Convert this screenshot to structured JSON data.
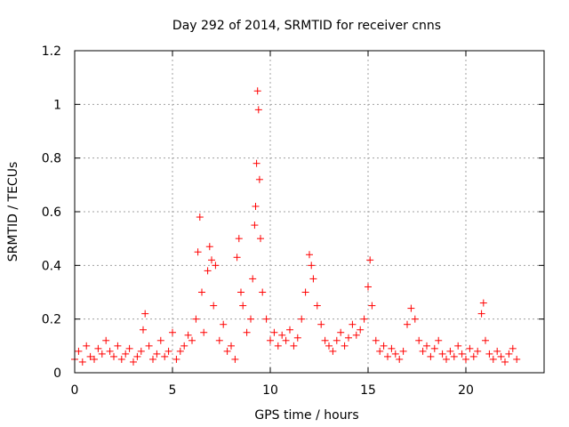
{
  "chart_data": {
    "type": "scatter",
    "title": "Day 292 of 2014, SRMTID for receiver cnns",
    "xlabel": "GPS time / hours",
    "ylabel": "SRMTID / TECUs",
    "xlim": [
      0,
      24
    ],
    "ylim": [
      0,
      1.2
    ],
    "xticks": [
      0,
      5,
      10,
      15,
      20
    ],
    "xtick_labels": [
      "0",
      "5",
      "10",
      "15",
      "20"
    ],
    "yticks": [
      0,
      0.2,
      0.4,
      0.6,
      0.8,
      1.0,
      1.2
    ],
    "ytick_labels": [
      "0",
      "0.2",
      "0.4",
      "0.6",
      "0.8",
      "1",
      "1.2"
    ],
    "grid": true,
    "marker": "+",
    "color": "#ff0000",
    "series": [
      {
        "name": "SRMTID",
        "x": [
          0.0,
          0.2,
          0.4,
          0.6,
          0.8,
          1.0,
          1.2,
          1.4,
          1.6,
          1.8,
          2.0,
          2.2,
          2.4,
          2.6,
          2.8,
          3.0,
          3.2,
          3.4,
          3.5,
          3.6,
          3.8,
          4.0,
          4.2,
          4.4,
          4.6,
          4.8,
          5.0,
          5.2,
          5.4,
          5.6,
          5.8,
          6.0,
          6.2,
          6.3,
          6.4,
          6.5,
          6.6,
          6.8,
          6.9,
          7.0,
          7.1,
          7.2,
          7.4,
          7.6,
          7.8,
          8.0,
          8.2,
          8.3,
          8.4,
          8.5,
          8.6,
          8.8,
          9.0,
          9.1,
          9.2,
          9.25,
          9.3,
          9.35,
          9.4,
          9.45,
          9.5,
          9.6,
          9.8,
          10.0,
          10.2,
          10.4,
          10.6,
          10.8,
          11.0,
          11.2,
          11.4,
          11.6,
          11.8,
          12.0,
          12.1,
          12.2,
          12.4,
          12.6,
          12.8,
          13.0,
          13.2,
          13.4,
          13.6,
          13.8,
          14.0,
          14.2,
          14.4,
          14.6,
          14.8,
          15.0,
          15.1,
          15.2,
          15.4,
          15.6,
          15.8,
          16.0,
          16.2,
          16.4,
          16.6,
          16.8,
          17.0,
          17.2,
          17.4,
          17.6,
          17.8,
          18.0,
          18.2,
          18.4,
          18.6,
          18.8,
          19.0,
          19.2,
          19.4,
          19.6,
          19.8,
          20.0,
          20.2,
          20.4,
          20.6,
          20.8,
          20.9,
          21.0,
          21.2,
          21.4,
          21.6,
          21.8,
          22.0,
          22.2,
          22.4,
          22.6
        ],
        "y": [
          0.05,
          0.08,
          0.04,
          0.1,
          0.06,
          0.05,
          0.09,
          0.07,
          0.12,
          0.08,
          0.06,
          0.1,
          0.05,
          0.07,
          0.09,
          0.04,
          0.06,
          0.08,
          0.16,
          0.22,
          0.1,
          0.05,
          0.07,
          0.12,
          0.06,
          0.08,
          0.15,
          0.05,
          0.08,
          0.1,
          0.14,
          0.12,
          0.2,
          0.45,
          0.58,
          0.3,
          0.15,
          0.38,
          0.47,
          0.42,
          0.25,
          0.4,
          0.12,
          0.18,
          0.08,
          0.1,
          0.05,
          0.43,
          0.5,
          0.3,
          0.25,
          0.15,
          0.2,
          0.35,
          0.55,
          0.62,
          0.78,
          1.05,
          0.98,
          0.72,
          0.5,
          0.3,
          0.2,
          0.12,
          0.15,
          0.1,
          0.14,
          0.12,
          0.16,
          0.1,
          0.13,
          0.2,
          0.3,
          0.44,
          0.4,
          0.35,
          0.25,
          0.18,
          0.12,
          0.1,
          0.08,
          0.12,
          0.15,
          0.1,
          0.13,
          0.18,
          0.14,
          0.16,
          0.2,
          0.32,
          0.42,
          0.25,
          0.12,
          0.08,
          0.1,
          0.06,
          0.09,
          0.07,
          0.05,
          0.08,
          0.18,
          0.24,
          0.2,
          0.12,
          0.08,
          0.1,
          0.06,
          0.09,
          0.12,
          0.07,
          0.05,
          0.08,
          0.06,
          0.1,
          0.07,
          0.05,
          0.09,
          0.06,
          0.08,
          0.22,
          0.26,
          0.12,
          0.07,
          0.05,
          0.08,
          0.06,
          0.04,
          0.07,
          0.09,
          0.05
        ]
      }
    ]
  }
}
